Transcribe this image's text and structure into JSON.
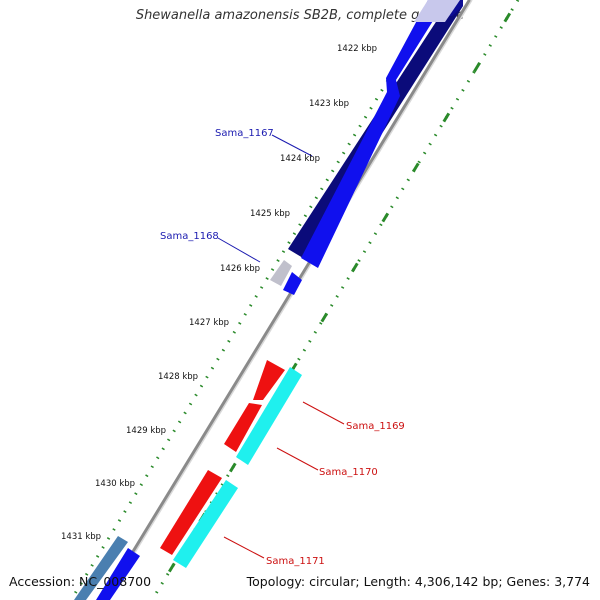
{
  "title": "Shewanella amazonensis SB2B, complete genome",
  "accession": "Accession: NC_008700",
  "summary": "Topology: circular; Length: 4,306,142 bp; Genes: 3,774",
  "colors": {
    "forward_cds_dark": "#0b0b7a",
    "forward_cds": "#1010ee",
    "reverse_cds": "#ee1111",
    "reverse_cds_light": "#1ff0ee",
    "pseudo": "#b8b8c8",
    "backbone": "#888888",
    "tick_dots": "#2a8a2a",
    "forward_label": "#1b1bb0",
    "reverse_label": "#cc1111"
  },
  "ticks": [
    "1422 kbp",
    "1423 kbp",
    "1424 kbp",
    "1425 kbp",
    "1426 kbp",
    "1427 kbp",
    "1428 kbp",
    "1429 kbp",
    "1430 kbp",
    "1431 kbp"
  ],
  "genes": [
    {
      "name": "Sama_1167",
      "strand": "forward"
    },
    {
      "name": "Sama_1168",
      "strand": "forward"
    },
    {
      "name": "Sama_1169",
      "strand": "reverse"
    },
    {
      "name": "Sama_1170",
      "strand": "reverse"
    },
    {
      "name": "Sama_1171",
      "strand": "reverse"
    }
  ]
}
